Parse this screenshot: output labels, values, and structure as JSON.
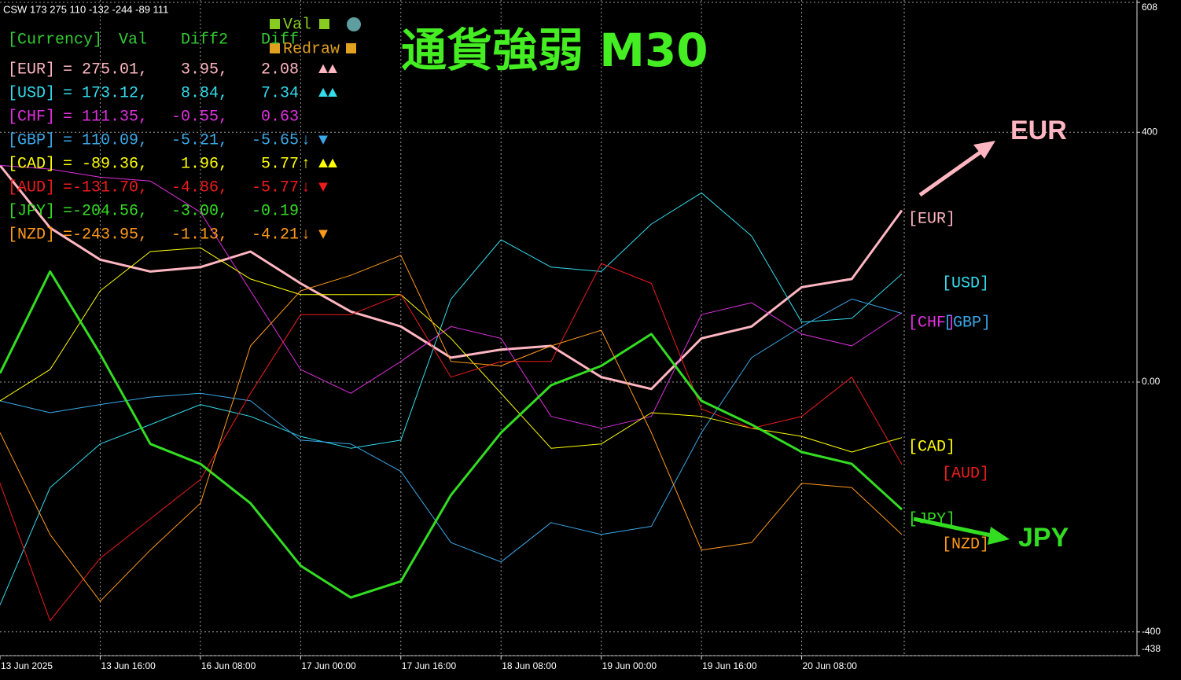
{
  "window_caption": "CSW 173 275 110 -132 -244 -89 111",
  "buttons": [
    "Val",
    "Redraw"
  ],
  "panel": {
    "header": [
      "[Currency]",
      "Val",
      "Diff2",
      "Diff"
    ],
    "rows": [
      {
        "currency": "[EUR]",
        "eq": "=",
        "val": "275.01,",
        "diff2": "3.95,",
        "diff": "2.08",
        "signal": "▲▲"
      },
      {
        "currency": "[USD]",
        "eq": "=",
        "val": "173.12,",
        "diff2": "8.84,",
        "diff": "7.34",
        "signal": "▲▲"
      },
      {
        "currency": "[CHF]",
        "eq": "=",
        "val": "111.35,",
        "diff2": "-0.55,",
        "diff": "0.63"
      },
      {
        "currency": "[GBP]",
        "eq": "=",
        "val": "110.09,",
        "diff2": "-5.21,",
        "diff": "-5.65",
        "trend": "↓",
        "signal": "▼"
      },
      {
        "currency": "[CAD]",
        "eq": "=",
        "val": "-89.36,",
        "diff2": "1.96,",
        "diff": "5.77",
        "trend": "↑",
        "signal": "▲▲"
      },
      {
        "currency": "[AUD]",
        "eq": "=",
        "val": "-131.70,",
        "diff2": "-4.86,",
        "diff": "-5.77",
        "trend": "↓",
        "signal": "▼"
      },
      {
        "currency": "[JPY]",
        "eq": "=",
        "val": "-204.56,",
        "diff2": "-3.00,",
        "diff": "-0.19"
      },
      {
        "currency": "[NZD]",
        "eq": "=",
        "val": "-243.95,",
        "diff2": "-1.13,",
        "diff": "-4.21",
        "trend": "↓",
        "signal": "▼"
      }
    ]
  },
  "chart_data": {
    "type": "line",
    "title": "通貨強弱 M30",
    "annotations": [
      "EUR",
      "JPY"
    ],
    "categories": [
      "13 Jun 2025",
      null,
      "13 Jun 16:00",
      null,
      "16 Jun 08:00",
      null,
      "17 Jun 00:00",
      null,
      "17 Jun 16:00",
      null,
      "18 Jun 08:00",
      null,
      "19 Jun 00:00",
      null,
      "19 Jun 16:00",
      null,
      "20 Jun 08:00",
      null,
      null
    ],
    "ylim": [
      -438,
      608
    ],
    "yticks": [
      608,
      400,
      {
        "value": 0,
        "label": "0.00"
      },
      -400,
      -438
    ],
    "grid": true,
    "series": [
      {
        "name": "[EUR]",
        "color": "#ffb6c1",
        "values": [
          347,
          247,
          196,
          177,
          184,
          209,
          158,
          113,
          89,
          39,
          52,
          58,
          8,
          -11,
          70,
          89,
          152,
          165,
          275
        ]
      },
      {
        "name": "[USD]",
        "color": "#33ddee",
        "values": [
          -357,
          -169,
          -99,
          -68,
          -36,
          -55,
          -87,
          -106,
          -93,
          133,
          228,
          184,
          177,
          253,
          303,
          234,
          96,
          102,
          173
        ]
      },
      {
        "name": "[CHF]",
        "color": "#e030e0",
        "values": [
          347,
          341,
          328,
          322,
          272,
          146,
          20,
          -18,
          33,
          89,
          70,
          -55,
          -74,
          -55,
          108,
          127,
          77,
          58,
          111
        ]
      },
      {
        "name": "[GBP]",
        "color": "#3aa8e8",
        "values": [
          -30,
          -49,
          -36,
          -24,
          -18,
          -30,
          -93,
          -99,
          -143,
          -257,
          -288,
          -225,
          -244,
          -231,
          -81,
          39,
          89,
          133,
          110
        ]
      },
      {
        "name": "[CAD]",
        "color": "#ffff00",
        "values": [
          -30,
          20,
          146,
          209,
          215,
          165,
          140,
          140,
          140,
          70,
          -18,
          -106,
          -99,
          -49,
          -55,
          -74,
          -87,
          -112,
          -89
        ]
      },
      {
        "name": "[AUD]",
        "color": "#ee1c1c",
        "values": [
          -162,
          -382,
          -282,
          -219,
          -156,
          -18,
          108,
          108,
          140,
          8,
          33,
          33,
          190,
          158,
          -43,
          -74,
          -55,
          8,
          -132
        ]
      },
      {
        "name": "[JPY]",
        "color": "#33dd22",
        "values": [
          14,
          177,
          45,
          -99,
          -131,
          -194,
          -294,
          -345,
          -319,
          -181,
          -81,
          -5,
          26,
          77,
          -30,
          -68,
          -112,
          -131,
          -204
        ]
      },
      {
        "name": "[NZD]",
        "color": "#ff9a1a",
        "values": [
          -81,
          -244,
          -351,
          -269,
          -194,
          58,
          146,
          171,
          203,
          33,
          26,
          58,
          83,
          -81,
          -269,
          -257,
          -162,
          -169,
          -244
        ]
      }
    ]
  }
}
